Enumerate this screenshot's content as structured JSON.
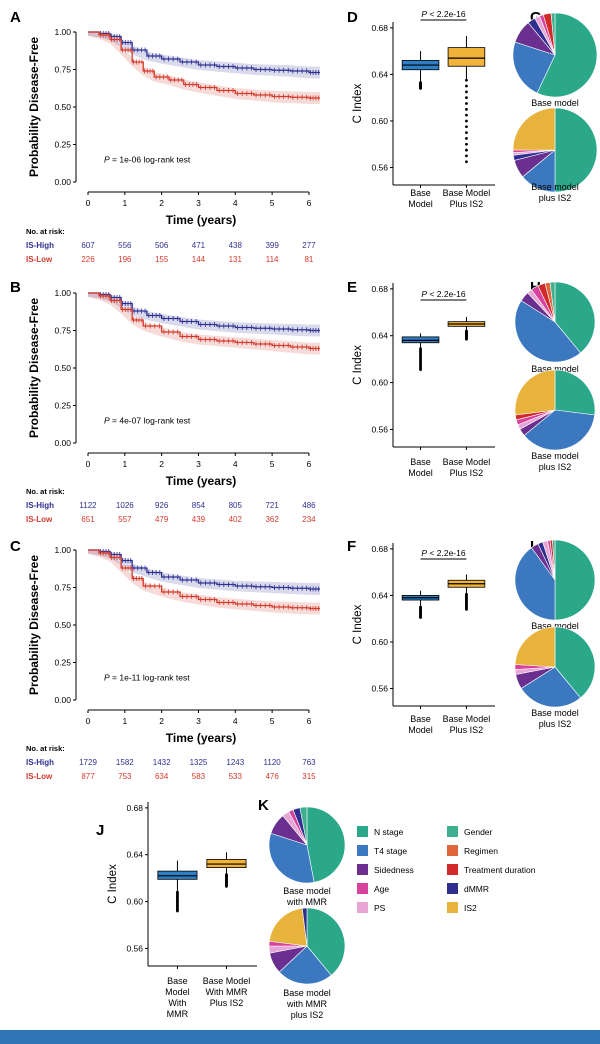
{
  "colors": {
    "high": "#2f3192",
    "low": "#d33a2c",
    "base_box": "#2f7fc6",
    "is2_box": "#f2b33a",
    "bar": "#2f75b5"
  },
  "km_panels": [
    {
      "letter": "A",
      "ylabel": "Probability Disease-Free",
      "xlabel": "Time (years)",
      "pvalue_text": "= 1e-06 log-rank test",
      "p_symbol": "P",
      "risk_title": "No. at risk:",
      "high_label": "IS-High",
      "low_label": "IS-Low",
      "high_risk": [
        "607",
        "556",
        "506",
        "471",
        "438",
        "399",
        "277"
      ],
      "low_risk": [
        "226",
        "196",
        "155",
        "144",
        "131",
        "114",
        "81"
      ]
    },
    {
      "letter": "B",
      "ylabel": "Probability Disease-Free",
      "xlabel": "Time (years)",
      "pvalue_text": "= 4e-07 log-rank test",
      "p_symbol": "P",
      "risk_title": "No. at risk:",
      "high_label": "IS-High",
      "low_label": "IS-Low",
      "high_risk": [
        "1122",
        "1026",
        "926",
        "854",
        "805",
        "721",
        "486"
      ],
      "low_risk": [
        "651",
        "557",
        "479",
        "439",
        "402",
        "362",
        "234"
      ]
    },
    {
      "letter": "C",
      "ylabel": "Probability Disease-Free",
      "xlabel": "Time (years)",
      "pvalue_text": "= 1e-11 log-rank test",
      "p_symbol": "P",
      "risk_title": "No. at risk:",
      "high_label": "IS-High",
      "low_label": "IS-Low",
      "high_risk": [
        "1729",
        "1582",
        "1432",
        "1325",
        "1243",
        "1120",
        "763"
      ],
      "low_risk": [
        "877",
        "753",
        "634",
        "583",
        "533",
        "476",
        "315"
      ]
    }
  ],
  "box_panels": [
    {
      "letter": "D",
      "ylabel": "C Index",
      "p_text": " < 2.2e-16",
      "p_symbol": "P",
      "cat1": [
        "Base",
        "Model"
      ],
      "cat2": [
        "Base Model",
        "Plus IS2"
      ]
    },
    {
      "letter": "E",
      "ylabel": "C Index",
      "p_text": " < 2.2e-16",
      "p_symbol": "P",
      "cat1": [
        "Base",
        "Model"
      ],
      "cat2": [
        "Base Model",
        "Plus IS2"
      ]
    },
    {
      "letter": "F",
      "ylabel": "C Index",
      "p_text": " < 2.2e-16",
      "p_symbol": "P",
      "cat1": [
        "Base",
        "Model"
      ],
      "cat2": [
        "Base Model",
        "Plus IS2"
      ]
    },
    {
      "letter": "J",
      "ylabel": "C Index",
      "p_text": "",
      "p_symbol": "",
      "cat1": [
        "Base",
        "Model",
        "With",
        "MMR"
      ],
      "cat2": [
        "Base Model",
        "With MMR",
        "Plus IS2"
      ]
    }
  ],
  "pie_panels": [
    {
      "letter": "G",
      "top_label": [
        "Base model"
      ],
      "bottom_label": [
        "Base model",
        "plus IS2"
      ]
    },
    {
      "letter": "H",
      "top_label": [
        "Base model"
      ],
      "bottom_label": [
        "Base model",
        "plus IS2"
      ]
    },
    {
      "letter": "I",
      "top_label": [
        "Base model"
      ],
      "bottom_label": [
        "Base model",
        "plus IS2"
      ]
    },
    {
      "letter": "K",
      "top_label": [
        "Base model",
        "with MMR"
      ],
      "bottom_label": [
        "Base model",
        "with MMR",
        "plus IS2"
      ]
    }
  ],
  "legend": [
    {
      "label": "N stage",
      "color": "#2aa889"
    },
    {
      "label": "Gender",
      "color": "#3fb08f"
    },
    {
      "label": "T4 stage",
      "color": "#3b78c0"
    },
    {
      "label": "Regimen",
      "color": "#e0653a"
    },
    {
      "label": "Sidedness",
      "color": "#6a2f8f"
    },
    {
      "label": "Treatment duration",
      "color": "#d22a2a"
    },
    {
      "label": "Age",
      "color": "#d6429c"
    },
    {
      "label": "dMMR",
      "color": "#2e2f8e"
    },
    {
      "label": "PS",
      "color": "#e7a6d6"
    },
    {
      "label": "IS2",
      "color": "#e8b33c"
    }
  ],
  "chart_data": [
    {
      "type": "line",
      "panel": "A",
      "x_ticks": [
        0,
        1,
        2,
        3,
        4,
        5,
        6
      ],
      "y_ticks": [
        "0.00",
        "0.25",
        "0.50",
        "0.75",
        "1.00"
      ],
      "xlim": [
        0,
        6.3
      ],
      "ylim": [
        0,
        1
      ],
      "series": [
        {
          "name": "IS-High",
          "x": [
            0,
            0.3,
            0.6,
            0.9,
            1.2,
            1.6,
            2,
            2.5,
            3,
            3.5,
            4,
            4.5,
            5,
            5.5,
            6,
            6.3
          ],
          "y": [
            1,
            0.99,
            0.97,
            0.93,
            0.88,
            0.84,
            0.82,
            0.8,
            0.78,
            0.77,
            0.76,
            0.75,
            0.745,
            0.74,
            0.73,
            0.73
          ]
        },
        {
          "name": "IS-Low",
          "x": [
            0,
            0.3,
            0.6,
            0.9,
            1.2,
            1.5,
            1.8,
            2.2,
            2.6,
            3,
            3.5,
            4,
            4.5,
            5,
            5.5,
            6,
            6.3
          ],
          "y": [
            1,
            0.98,
            0.95,
            0.88,
            0.8,
            0.74,
            0.7,
            0.68,
            0.65,
            0.63,
            0.61,
            0.59,
            0.58,
            0.57,
            0.565,
            0.56,
            0.56
          ]
        }
      ]
    },
    {
      "type": "line",
      "panel": "B",
      "x_ticks": [
        0,
        1,
        2,
        3,
        4,
        5,
        6
      ],
      "y_ticks": [
        "0.00",
        "0.25",
        "0.50",
        "0.75",
        "1.00"
      ],
      "xlim": [
        0,
        6.3
      ],
      "ylim": [
        0,
        1
      ],
      "series": [
        {
          "name": "IS-High",
          "x": [
            0,
            0.3,
            0.6,
            0.9,
            1.2,
            1.6,
            2,
            2.5,
            3,
            3.5,
            4,
            4.5,
            5,
            5.5,
            6,
            6.3
          ],
          "y": [
            1,
            0.99,
            0.97,
            0.93,
            0.88,
            0.85,
            0.83,
            0.81,
            0.79,
            0.78,
            0.77,
            0.765,
            0.76,
            0.755,
            0.75,
            0.75
          ]
        },
        {
          "name": "IS-Low",
          "x": [
            0,
            0.3,
            0.6,
            0.9,
            1.2,
            1.5,
            2,
            2.5,
            3,
            3.5,
            4,
            4.5,
            5,
            5.5,
            6,
            6.3
          ],
          "y": [
            1,
            0.98,
            0.95,
            0.89,
            0.82,
            0.78,
            0.74,
            0.71,
            0.69,
            0.68,
            0.67,
            0.66,
            0.65,
            0.64,
            0.63,
            0.63
          ]
        }
      ]
    },
    {
      "type": "line",
      "panel": "C",
      "x_ticks": [
        0,
        1,
        2,
        3,
        4,
        5,
        6
      ],
      "y_ticks": [
        "0.00",
        "0.25",
        "0.50",
        "0.75",
        "1.00"
      ],
      "xlim": [
        0,
        6.3
      ],
      "ylim": [
        0,
        1
      ],
      "series": [
        {
          "name": "IS-High",
          "x": [
            0,
            0.3,
            0.6,
            0.9,
            1.2,
            1.6,
            2,
            2.5,
            3,
            3.5,
            4,
            4.5,
            5,
            5.5,
            6,
            6.3
          ],
          "y": [
            1,
            0.99,
            0.97,
            0.93,
            0.88,
            0.85,
            0.82,
            0.8,
            0.78,
            0.77,
            0.76,
            0.755,
            0.75,
            0.745,
            0.74,
            0.74
          ]
        },
        {
          "name": "IS-Low",
          "x": [
            0,
            0.3,
            0.6,
            0.9,
            1.2,
            1.5,
            2,
            2.5,
            3,
            3.5,
            4,
            4.5,
            5,
            5.5,
            6,
            6.3
          ],
          "y": [
            1,
            0.98,
            0.95,
            0.88,
            0.81,
            0.76,
            0.72,
            0.69,
            0.67,
            0.65,
            0.64,
            0.63,
            0.62,
            0.615,
            0.61,
            0.61
          ]
        }
      ]
    },
    {
      "type": "box",
      "panel": "D",
      "y_ticks": [
        "0.56",
        "0.60",
        "0.64",
        "0.68"
      ],
      "ylim": [
        0.545,
        0.685
      ],
      "boxes": [
        {
          "q1": 0.644,
          "median": 0.648,
          "q3": 0.652,
          "lo": 0.633,
          "hi": 0.66,
          "out_lo": 0.628
        },
        {
          "q1": 0.647,
          "median": 0.654,
          "q3": 0.663,
          "lo": 0.635,
          "hi": 0.673,
          "out_lo": 0.565
        }
      ]
    },
    {
      "type": "box",
      "panel": "E",
      "y_ticks": [
        "0.56",
        "0.60",
        "0.64",
        "0.68"
      ],
      "ylim": [
        0.545,
        0.685
      ],
      "boxes": [
        {
          "q1": 0.634,
          "median": 0.636,
          "q3": 0.639,
          "lo": 0.629,
          "hi": 0.642,
          "out_lo": 0.611
        },
        {
          "q1": 0.648,
          "median": 0.65,
          "q3": 0.652,
          "lo": 0.644,
          "hi": 0.656,
          "out_lo": 0.637
        }
      ]
    },
    {
      "type": "box",
      "panel": "F",
      "y_ticks": [
        "0.56",
        "0.60",
        "0.64",
        "0.68"
      ],
      "ylim": [
        0.545,
        0.685
      ],
      "boxes": [
        {
          "q1": 0.636,
          "median": 0.638,
          "q3": 0.64,
          "lo": 0.63,
          "hi": 0.644,
          "out_lo": 0.621
        },
        {
          "q1": 0.647,
          "median": 0.65,
          "q3": 0.653,
          "lo": 0.641,
          "hi": 0.658,
          "out_lo": 0.628
        }
      ]
    },
    {
      "type": "box",
      "panel": "J",
      "y_ticks": [
        "0.56",
        "0.60",
        "0.64",
        "0.68"
      ],
      "ylim": [
        0.545,
        0.685
      ],
      "boxes": [
        {
          "q1": 0.619,
          "median": 0.622,
          "q3": 0.626,
          "lo": 0.608,
          "hi": 0.635,
          "out_lo": 0.592
        },
        {
          "q1": 0.629,
          "median": 0.632,
          "q3": 0.636,
          "lo": 0.623,
          "hi": 0.642,
          "out_lo": 0.613
        }
      ]
    },
    {
      "type": "pie",
      "panel": "G",
      "chart": "top",
      "slices": [
        {
          "label": "N stage",
          "value": 57
        },
        {
          "label": "T4 stage",
          "value": 23
        },
        {
          "label": "Sidedness",
          "value": 9
        },
        {
          "label": "dMMR",
          "value": 3
        },
        {
          "label": "PS",
          "value": 2
        },
        {
          "label": "Age",
          "value": 1.5
        },
        {
          "label": "Treatment duration",
          "value": 3
        },
        {
          "label": "Gender",
          "value": 1.5
        }
      ]
    },
    {
      "type": "pie",
      "panel": "G",
      "chart": "bottom",
      "slices": [
        {
          "label": "N stage",
          "value": 50
        },
        {
          "label": "T4 stage",
          "value": 14
        },
        {
          "label": "Sidedness",
          "value": 7
        },
        {
          "label": "dMMR",
          "value": 2
        },
        {
          "label": "PS",
          "value": 1
        },
        {
          "label": "Age",
          "value": 1
        },
        {
          "label": "IS2",
          "value": 25
        }
      ]
    },
    {
      "type": "pie",
      "panel": "H",
      "chart": "top",
      "slices": [
        {
          "label": "N stage",
          "value": 39
        },
        {
          "label": "T4 stage",
          "value": 45
        },
        {
          "label": "Sidedness",
          "value": 4
        },
        {
          "label": "PS",
          "value": 2
        },
        {
          "label": "Age",
          "value": 3
        },
        {
          "label": "Treatment duration",
          "value": 3
        },
        {
          "label": "Regimen",
          "value": 2
        },
        {
          "label": "Gender",
          "value": 2
        }
      ]
    },
    {
      "type": "pie",
      "panel": "H",
      "chart": "bottom",
      "slices": [
        {
          "label": "N stage",
          "value": 27
        },
        {
          "label": "T4 stage",
          "value": 37
        },
        {
          "label": "Sidedness",
          "value": 3
        },
        {
          "label": "PS",
          "value": 2
        },
        {
          "label": "Age",
          "value": 2
        },
        {
          "label": "Treatment duration",
          "value": 2
        },
        {
          "label": "IS2",
          "value": 27
        }
      ]
    },
    {
      "type": "pie",
      "panel": "I",
      "chart": "top",
      "slices": [
        {
          "label": "N stage",
          "value": 50
        },
        {
          "label": "T4 stage",
          "value": 40
        },
        {
          "label": "Sidedness",
          "value": 3
        },
        {
          "label": "dMMR",
          "value": 2
        },
        {
          "label": "PS",
          "value": 2
        },
        {
          "label": "Age",
          "value": 1
        },
        {
          "label": "Treatment duration",
          "value": 1
        },
        {
          "label": "Gender",
          "value": 1
        }
      ]
    },
    {
      "type": "pie",
      "panel": "I",
      "chart": "bottom",
      "slices": [
        {
          "label": "N stage",
          "value": 39
        },
        {
          "label": "T4 stage",
          "value": 27
        },
        {
          "label": "Sidedness",
          "value": 6
        },
        {
          "label": "PS",
          "value": 2
        },
        {
          "label": "Age",
          "value": 2
        },
        {
          "label": "IS2",
          "value": 24
        }
      ]
    },
    {
      "type": "pie",
      "panel": "K",
      "chart": "top",
      "slices": [
        {
          "label": "N stage",
          "value": 47
        },
        {
          "label": "T4 stage",
          "value": 33
        },
        {
          "label": "Sidedness",
          "value": 9
        },
        {
          "label": "PS",
          "value": 3
        },
        {
          "label": "Age",
          "value": 2
        },
        {
          "label": "dMMR",
          "value": 3
        },
        {
          "label": "Gender",
          "value": 3
        }
      ]
    },
    {
      "type": "pie",
      "panel": "K",
      "chart": "bottom",
      "slices": [
        {
          "label": "N stage",
          "value": 39
        },
        {
          "label": "T4 stage",
          "value": 24
        },
        {
          "label": "Sidedness",
          "value": 9
        },
        {
          "label": "PS",
          "value": 3
        },
        {
          "label": "Age",
          "value": 2
        },
        {
          "label": "IS2",
          "value": 21
        },
        {
          "label": "dMMR",
          "value": 2
        }
      ]
    }
  ]
}
